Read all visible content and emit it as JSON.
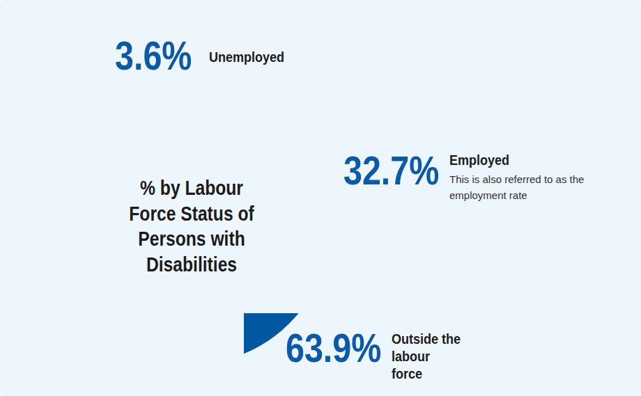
{
  "chart_data": {
    "type": "pie",
    "title": "% by Labour Force Status of Persons with Disabilities",
    "categories": [
      "Employed",
      "Outside the labour force",
      "Unemployed"
    ],
    "values": [
      32.7,
      63.9,
      3.6
    ],
    "value_labels": [
      "32.7%",
      "63.9%",
      "3.6%"
    ],
    "colors": [
      "#a4cd39",
      "#0158a0",
      "#a6260f"
    ],
    "data_labels": true,
    "annotations": [
      {
        "category": "Employed",
        "text": "This is also referred to as the employment rate"
      }
    ]
  }
}
